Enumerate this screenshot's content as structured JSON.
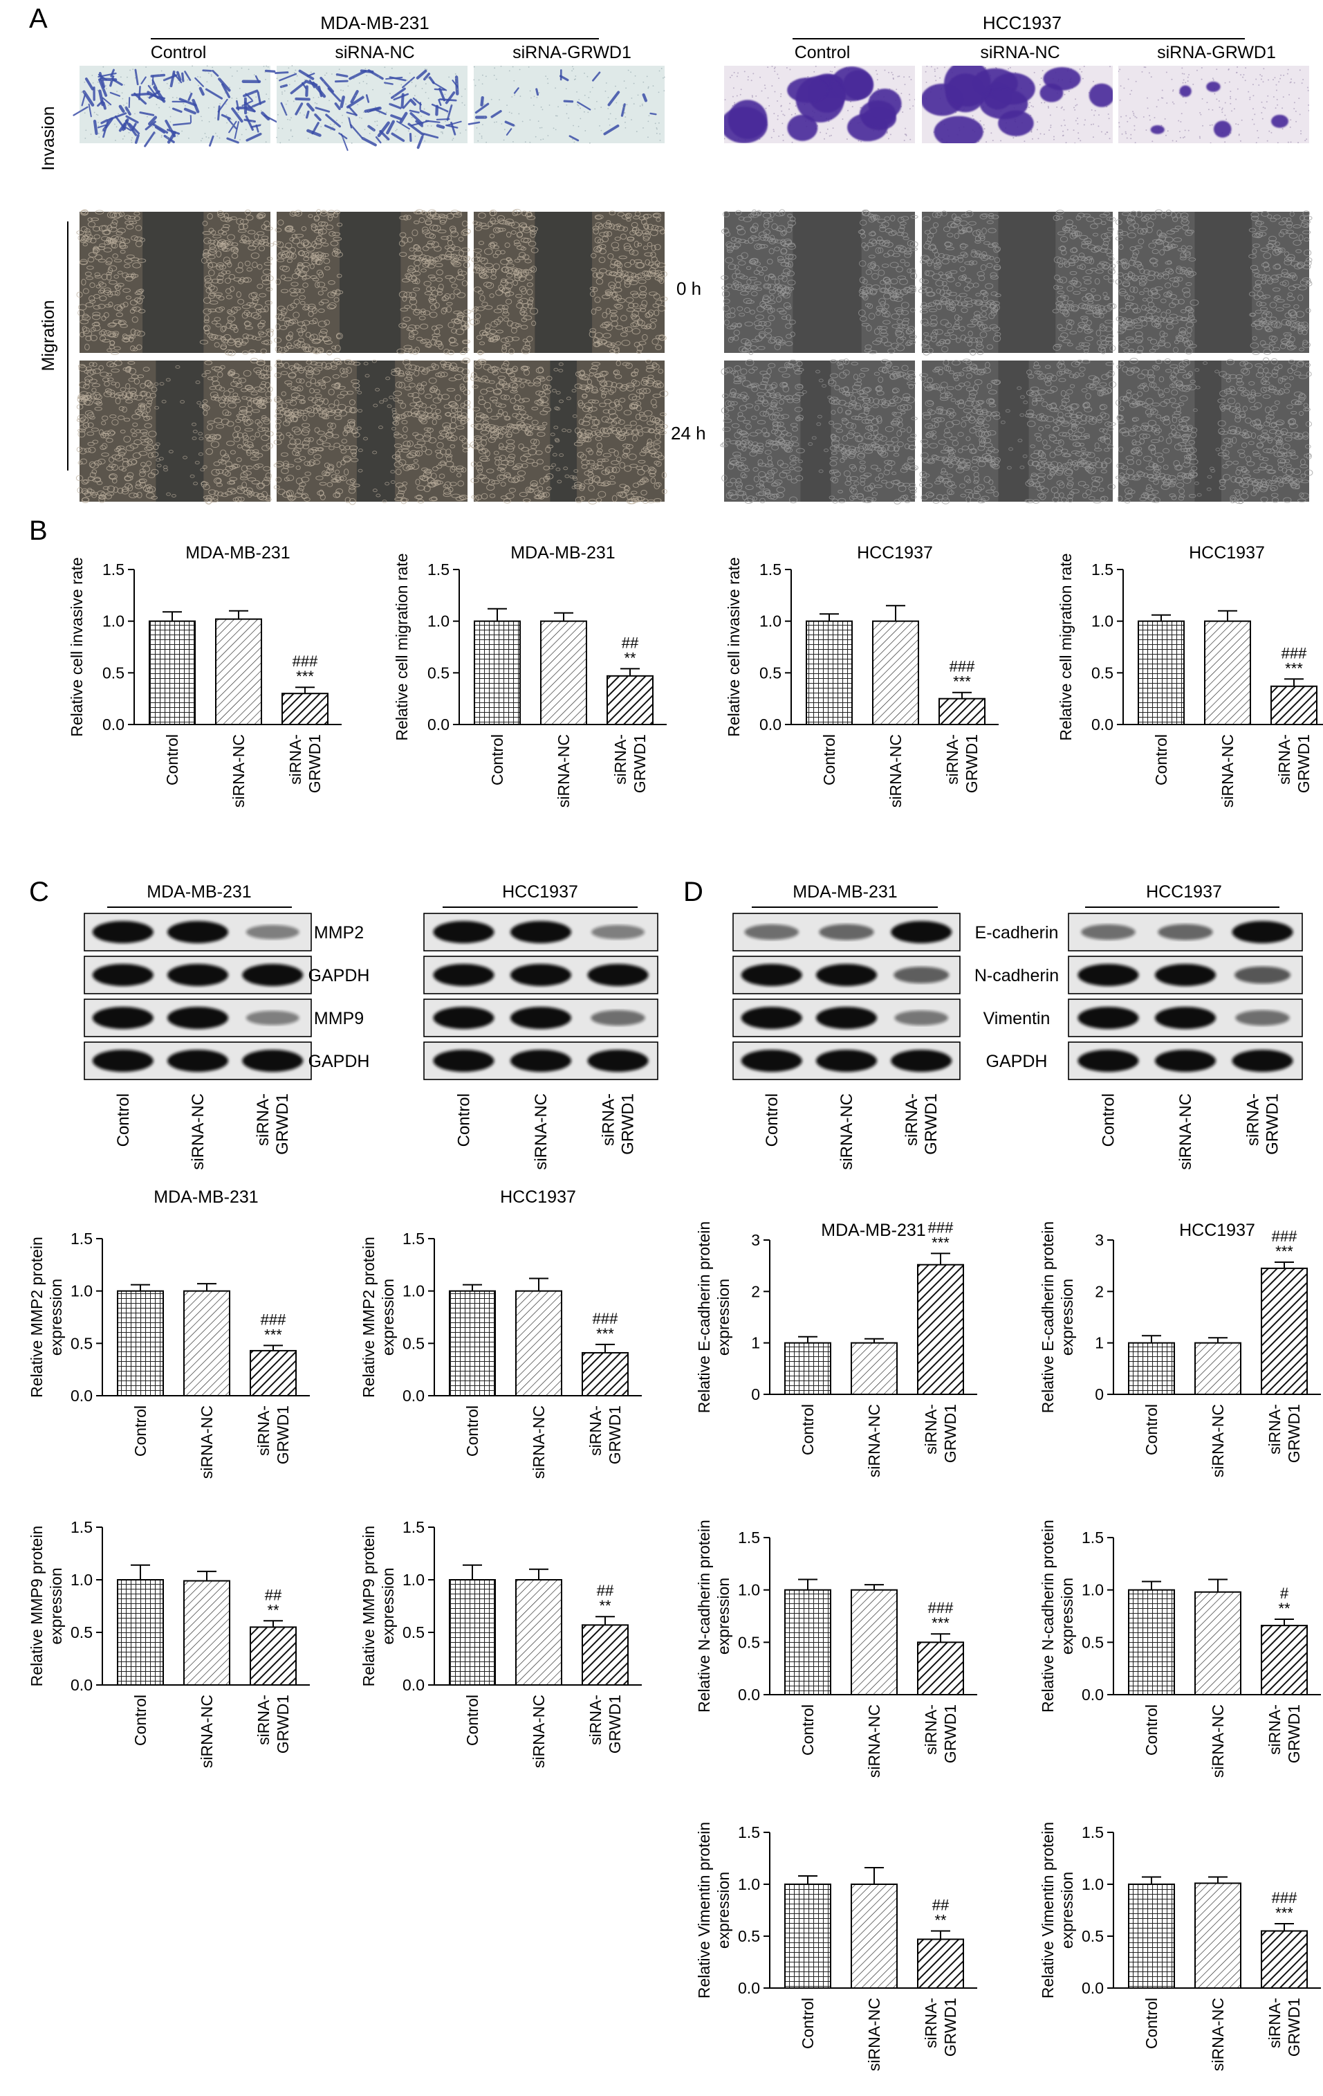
{
  "panels": {
    "A": "A",
    "B": "B",
    "C": "C",
    "D": "D"
  },
  "groups": [
    "Control",
    "siRNA-NC",
    "siRNA-GRWD1"
  ],
  "cell_lines": [
    "MDA-MB-231",
    "HCC1937"
  ],
  "panel_a": {
    "row_labels": {
      "invasion": "Invasion",
      "migration": "Migration"
    },
    "time_labels": [
      "0 h",
      "24 h"
    ],
    "stain_colors": {
      "mda_invasion": "#3b4ea8",
      "hcc_invasion": "#4a2a9a",
      "migration_bg": "#4a4a4a"
    }
  },
  "blots": {
    "c_labels": [
      "MMP2",
      "GAPDH",
      "MMP9",
      "GAPDH"
    ],
    "d_labels": [
      "E-cadherin",
      "N-cadherin",
      "Vimentin",
      "GAPDH"
    ],
    "c_intensity": [
      [
        [
          1,
          1,
          0.3
        ],
        [
          1,
          1,
          1
        ],
        [
          1,
          1,
          0.3
        ],
        [
          1,
          1,
          1
        ]
      ],
      [
        [
          1,
          1,
          0.3
        ],
        [
          1,
          1,
          1
        ],
        [
          1,
          1,
          0.4
        ],
        [
          1,
          1,
          1
        ]
      ]
    ],
    "d_intensity": [
      [
        [
          0.4,
          0.45,
          1
        ],
        [
          1,
          1,
          0.5
        ],
        [
          1,
          1,
          0.35
        ],
        [
          1,
          1,
          1
        ]
      ],
      [
        [
          0.4,
          0.45,
          1
        ],
        [
          1,
          1,
          0.55
        ],
        [
          1,
          1,
          0.4
        ],
        [
          1,
          1,
          1
        ]
      ]
    ]
  },
  "chart_data": [
    {
      "id": "b1",
      "type": "bar",
      "title": "MDA-MB-231",
      "ylabel": [
        "Relative cell invasive rate"
      ],
      "categories": [
        "Control",
        "siRNA-NC",
        "siRNA-\nGRWD1"
      ],
      "values": [
        1.0,
        1.02,
        0.3
      ],
      "errors": [
        0.09,
        0.08,
        0.06
      ],
      "ylim": [
        0,
        1.5
      ],
      "yticks": [
        "0.0",
        "0.5",
        "1.0",
        "1.5"
      ],
      "annotations": [
        "",
        "",
        "###\n***"
      ]
    },
    {
      "id": "b2",
      "type": "bar",
      "title": "MDA-MB-231",
      "ylabel": [
        "Relative cell migration rate"
      ],
      "categories": [
        "Control",
        "siRNA-NC",
        "siRNA-\nGRWD1"
      ],
      "values": [
        1.0,
        1.0,
        0.47
      ],
      "errors": [
        0.12,
        0.08,
        0.07
      ],
      "ylim": [
        0,
        1.5
      ],
      "yticks": [
        "0.0",
        "0.5",
        "1.0",
        "1.5"
      ],
      "annotations": [
        "",
        "",
        "##\n**"
      ]
    },
    {
      "id": "b3",
      "type": "bar",
      "title": "HCC1937",
      "ylabel": [
        "Relative cell invasive rate"
      ],
      "categories": [
        "Control",
        "siRNA-NC",
        "siRNA-\nGRWD1"
      ],
      "values": [
        1.0,
        1.0,
        0.25
      ],
      "errors": [
        0.07,
        0.15,
        0.06
      ],
      "ylim": [
        0,
        1.5
      ],
      "yticks": [
        "0.0",
        "0.5",
        "1.0",
        "1.5"
      ],
      "annotations": [
        "",
        "",
        "###\n***"
      ]
    },
    {
      "id": "b4",
      "type": "bar",
      "title": "HCC1937",
      "ylabel": [
        "Relative cell migration rate"
      ],
      "categories": [
        "Control",
        "siRNA-NC",
        "siRNA-\nGRWD1"
      ],
      "values": [
        1.0,
        1.0,
        0.37
      ],
      "errors": [
        0.06,
        0.1,
        0.07
      ],
      "ylim": [
        0,
        1.5
      ],
      "yticks": [
        "0.0",
        "0.5",
        "1.0",
        "1.5"
      ],
      "annotations": [
        "",
        "",
        "###\n***"
      ]
    },
    {
      "id": "c1",
      "type": "bar",
      "title": "MDA-MB-231",
      "ylabel": [
        "Relative MMP2 protein",
        "expression"
      ],
      "categories": [
        "Control",
        "siRNA-NC",
        "siRNA-\nGRWD1"
      ],
      "values": [
        1.0,
        1.0,
        0.43
      ],
      "errors": [
        0.06,
        0.07,
        0.05
      ],
      "ylim": [
        0,
        1.5
      ],
      "yticks": [
        "0.0",
        "0.5",
        "1.0",
        "1.5"
      ],
      "annotations": [
        "",
        "",
        "###\n***"
      ]
    },
    {
      "id": "c2",
      "type": "bar",
      "title": "HCC1937",
      "ylabel": [
        "Relative MMP2 protein",
        "expression"
      ],
      "categories": [
        "Control",
        "siRNA-NC",
        "siRNA-\nGRWD1"
      ],
      "values": [
        1.0,
        1.0,
        0.41
      ],
      "errors": [
        0.06,
        0.12,
        0.08
      ],
      "ylim": [
        0,
        1.5
      ],
      "yticks": [
        "0.0",
        "0.5",
        "1.0",
        "1.5"
      ],
      "annotations": [
        "",
        "",
        "###\n***"
      ]
    },
    {
      "id": "c3",
      "type": "bar",
      "title": "",
      "ylabel": [
        "Relative MMP9 protein",
        "expression"
      ],
      "categories": [
        "Control",
        "siRNA-NC",
        "siRNA-\nGRWD1"
      ],
      "values": [
        1.0,
        0.99,
        0.55
      ],
      "errors": [
        0.14,
        0.09,
        0.06
      ],
      "ylim": [
        0,
        1.5
      ],
      "yticks": [
        "0.0",
        "0.5",
        "1.0",
        "1.5"
      ],
      "annotations": [
        "",
        "",
        "##\n**"
      ]
    },
    {
      "id": "c4",
      "type": "bar",
      "title": "",
      "ylabel": [
        "Relative MMP9 protein",
        "expression"
      ],
      "categories": [
        "Control",
        "siRNA-NC",
        "siRNA-\nGRWD1"
      ],
      "values": [
        1.0,
        1.0,
        0.57
      ],
      "errors": [
        0.14,
        0.1,
        0.08
      ],
      "ylim": [
        0,
        1.5
      ],
      "yticks": [
        "0.0",
        "0.5",
        "1.0",
        "1.5"
      ],
      "annotations": [
        "",
        "",
        "##\n**"
      ]
    },
    {
      "id": "d1",
      "type": "bar",
      "title": "MDA-MB-231",
      "ylabel": [
        "Relative E-cadherin protein",
        "expression"
      ],
      "categories": [
        "Control",
        "siRNA-NC",
        "siRNA-\nGRWD1"
      ],
      "values": [
        1.0,
        1.0,
        2.52
      ],
      "errors": [
        0.12,
        0.08,
        0.22
      ],
      "ylim": [
        0,
        3
      ],
      "yticks": [
        "0",
        "1",
        "2",
        "3"
      ],
      "annotations": [
        "",
        "",
        "###\n***"
      ]
    },
    {
      "id": "d2",
      "type": "bar",
      "title": "HCC1937",
      "ylabel": [
        "Relative E-cadherin protein",
        "expression"
      ],
      "categories": [
        "Control",
        "siRNA-NC",
        "siRNA-\nGRWD1"
      ],
      "values": [
        1.0,
        1.0,
        2.45
      ],
      "errors": [
        0.14,
        0.1,
        0.12
      ],
      "ylim": [
        0,
        3
      ],
      "yticks": [
        "0",
        "1",
        "2",
        "3"
      ],
      "annotations": [
        "",
        "",
        "###\n***"
      ]
    },
    {
      "id": "d3",
      "type": "bar",
      "title": "",
      "ylabel": [
        "Relative N-cadherin protein",
        "expression"
      ],
      "categories": [
        "Control",
        "siRNA-NC",
        "siRNA-\nGRWD1"
      ],
      "values": [
        1.0,
        1.0,
        0.5
      ],
      "errors": [
        0.1,
        0.05,
        0.08
      ],
      "ylim": [
        0,
        1.5
      ],
      "yticks": [
        "0.0",
        "0.5",
        "1.0",
        "1.5"
      ],
      "annotations": [
        "",
        "",
        "###\n***"
      ]
    },
    {
      "id": "d4",
      "type": "bar",
      "title": "",
      "ylabel": [
        "Relative N-cadherin protein",
        "expression"
      ],
      "categories": [
        "Control",
        "siRNA-NC",
        "siRNA-\nGRWD1"
      ],
      "values": [
        1.0,
        0.98,
        0.66
      ],
      "errors": [
        0.08,
        0.12,
        0.06
      ],
      "ylim": [
        0,
        1.5
      ],
      "yticks": [
        "0.0",
        "0.5",
        "1.0",
        "1.5"
      ],
      "annotations": [
        "",
        "",
        "#\n**"
      ]
    },
    {
      "id": "d5",
      "type": "bar",
      "title": "",
      "ylabel": [
        "Relative Vimentin protein",
        "expression"
      ],
      "categories": [
        "Control",
        "siRNA-NC",
        "siRNA-\nGRWD1"
      ],
      "values": [
        1.0,
        1.0,
        0.47
      ],
      "errors": [
        0.08,
        0.16,
        0.08
      ],
      "ylim": [
        0,
        1.5
      ],
      "yticks": [
        "0.0",
        "0.5",
        "1.0",
        "1.5"
      ],
      "annotations": [
        "",
        "",
        "##\n**"
      ]
    },
    {
      "id": "d6",
      "type": "bar",
      "title": "",
      "ylabel": [
        "Relative Vimentin protein",
        "expression"
      ],
      "categories": [
        "Control",
        "siRNA-NC",
        "siRNA-\nGRWD1"
      ],
      "values": [
        1.0,
        1.01,
        0.55
      ],
      "errors": [
        0.07,
        0.06,
        0.07
      ],
      "ylim": [
        0,
        1.5
      ],
      "yticks": [
        "0.0",
        "0.5",
        "1.0",
        "1.5"
      ],
      "annotations": [
        "",
        "",
        "###\n***"
      ]
    }
  ]
}
